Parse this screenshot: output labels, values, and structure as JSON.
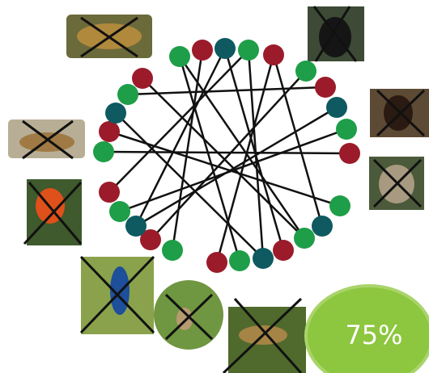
{
  "badge": {
    "label": "75%"
  }
}
